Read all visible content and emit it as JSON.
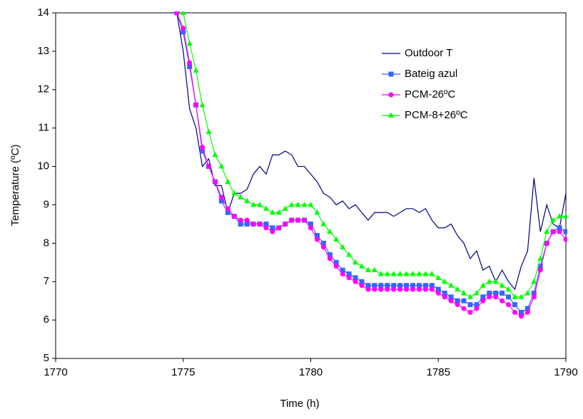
{
  "chart_data": {
    "type": "line",
    "xlabel": "Time (h)",
    "ylabel": "Temperature (ºC)",
    "x": [
      1774.5,
      1774.75,
      1775,
      1775.25,
      1775.5,
      1775.75,
      1776,
      1776.25,
      1776.5,
      1776.75,
      1777,
      1777.25,
      1777.5,
      1777.75,
      1778,
      1778.25,
      1778.5,
      1778.75,
      1779,
      1779.25,
      1779.5,
      1779.75,
      1780,
      1780.25,
      1780.5,
      1780.75,
      1781,
      1781.25,
      1781.5,
      1781.75,
      1782,
      1782.25,
      1782.5,
      1782.75,
      1783,
      1783.25,
      1783.5,
      1783.75,
      1784,
      1784.25,
      1784.5,
      1784.75,
      1785,
      1785.25,
      1785.5,
      1785.75,
      1786,
      1786.25,
      1786.5,
      1786.75,
      1787,
      1787.25,
      1787.5,
      1787.75,
      1788,
      1788.25,
      1788.5,
      1788.75,
      1789,
      1789.25,
      1789.5,
      1789.75,
      1790
    ],
    "series": [
      {
        "name": "Outdoor T",
        "color": "#000080",
        "marker": null,
        "values": [
          14.0,
          14.0,
          13.0,
          11.5,
          11.0,
          10.0,
          10.2,
          9.5,
          9.5,
          8.8,
          9.3,
          9.3,
          9.4,
          9.8,
          10.0,
          9.8,
          10.3,
          10.3,
          10.4,
          10.3,
          10.0,
          10.0,
          9.8,
          9.6,
          9.3,
          9.2,
          9.0,
          9.1,
          8.9,
          9.0,
          8.8,
          8.6,
          8.8,
          8.8,
          8.8,
          8.7,
          8.8,
          8.9,
          8.9,
          8.8,
          8.9,
          8.6,
          8.4,
          8.4,
          8.5,
          8.2,
          8.0,
          7.6,
          7.8,
          7.3,
          7.4,
          7.0,
          7.3,
          7.0,
          6.8,
          7.4,
          7.8,
          9.7,
          8.3,
          9.0,
          8.5,
          8.4,
          9.3
        ]
      },
      {
        "name": "Bateig azul",
        "color": "#3366ff",
        "marker": "square",
        "values": [
          null,
          14.0,
          13.5,
          12.6,
          11.6,
          10.4,
          10.0,
          9.6,
          9.1,
          8.8,
          8.7,
          8.5,
          8.5,
          8.5,
          8.5,
          8.5,
          8.4,
          8.4,
          8.5,
          8.6,
          8.6,
          8.6,
          8.5,
          8.2,
          8.0,
          7.7,
          7.5,
          7.3,
          7.2,
          7.1,
          7.0,
          6.9,
          6.9,
          6.9,
          6.9,
          6.9,
          6.9,
          6.9,
          6.9,
          6.9,
          6.9,
          6.9,
          6.8,
          6.7,
          6.6,
          6.5,
          6.5,
          6.4,
          6.4,
          6.6,
          6.7,
          6.7,
          6.7,
          6.6,
          6.4,
          6.2,
          6.3,
          6.7,
          7.4,
          8.0,
          8.3,
          8.4,
          8.3
        ]
      },
      {
        "name": "PCM-26ºC",
        "color": "#ff00ff",
        "marker": "circle",
        "values": [
          null,
          14.0,
          13.6,
          12.7,
          11.6,
          10.5,
          10.0,
          9.6,
          9.2,
          8.9,
          8.7,
          8.6,
          8.6,
          8.5,
          8.5,
          8.4,
          8.3,
          8.4,
          8.5,
          8.6,
          8.6,
          8.6,
          8.4,
          8.1,
          7.9,
          7.6,
          7.4,
          7.2,
          7.1,
          7.0,
          6.9,
          6.8,
          6.8,
          6.8,
          6.8,
          6.8,
          6.8,
          6.8,
          6.8,
          6.8,
          6.8,
          6.8,
          6.7,
          6.6,
          6.5,
          6.4,
          6.3,
          6.2,
          6.3,
          6.5,
          6.6,
          6.6,
          6.5,
          6.4,
          6.2,
          6.1,
          6.2,
          6.6,
          7.3,
          8.0,
          8.3,
          8.3,
          8.1
        ]
      },
      {
        "name": "PCM-8+26ºC",
        "color": "#00ff00",
        "marker": "triangle",
        "values": [
          null,
          null,
          14.0,
          13.2,
          12.5,
          11.6,
          10.9,
          10.3,
          10.0,
          9.6,
          9.3,
          9.2,
          9.1,
          9.0,
          9.0,
          8.9,
          8.8,
          8.8,
          8.9,
          9.0,
          9.0,
          9.0,
          9.0,
          8.8,
          8.5,
          8.3,
          8.1,
          7.9,
          7.7,
          7.5,
          7.4,
          7.3,
          7.3,
          7.2,
          7.2,
          7.2,
          7.2,
          7.2,
          7.2,
          7.2,
          7.2,
          7.2,
          7.1,
          7.0,
          6.9,
          6.8,
          6.7,
          6.6,
          6.7,
          6.9,
          7.0,
          7.0,
          6.9,
          6.8,
          6.6,
          6.6,
          6.7,
          7.0,
          7.6,
          8.3,
          8.6,
          8.7,
          8.7
        ]
      }
    ],
    "xlim": [
      1770,
      1790
    ],
    "xticks": [
      1770,
      1775,
      1780,
      1785,
      1790
    ],
    "ylim": [
      5,
      14
    ],
    "yticks": [
      5,
      6,
      7,
      8,
      9,
      10,
      11,
      12,
      13,
      14
    ],
    "grid": false,
    "legend": "upper right"
  }
}
